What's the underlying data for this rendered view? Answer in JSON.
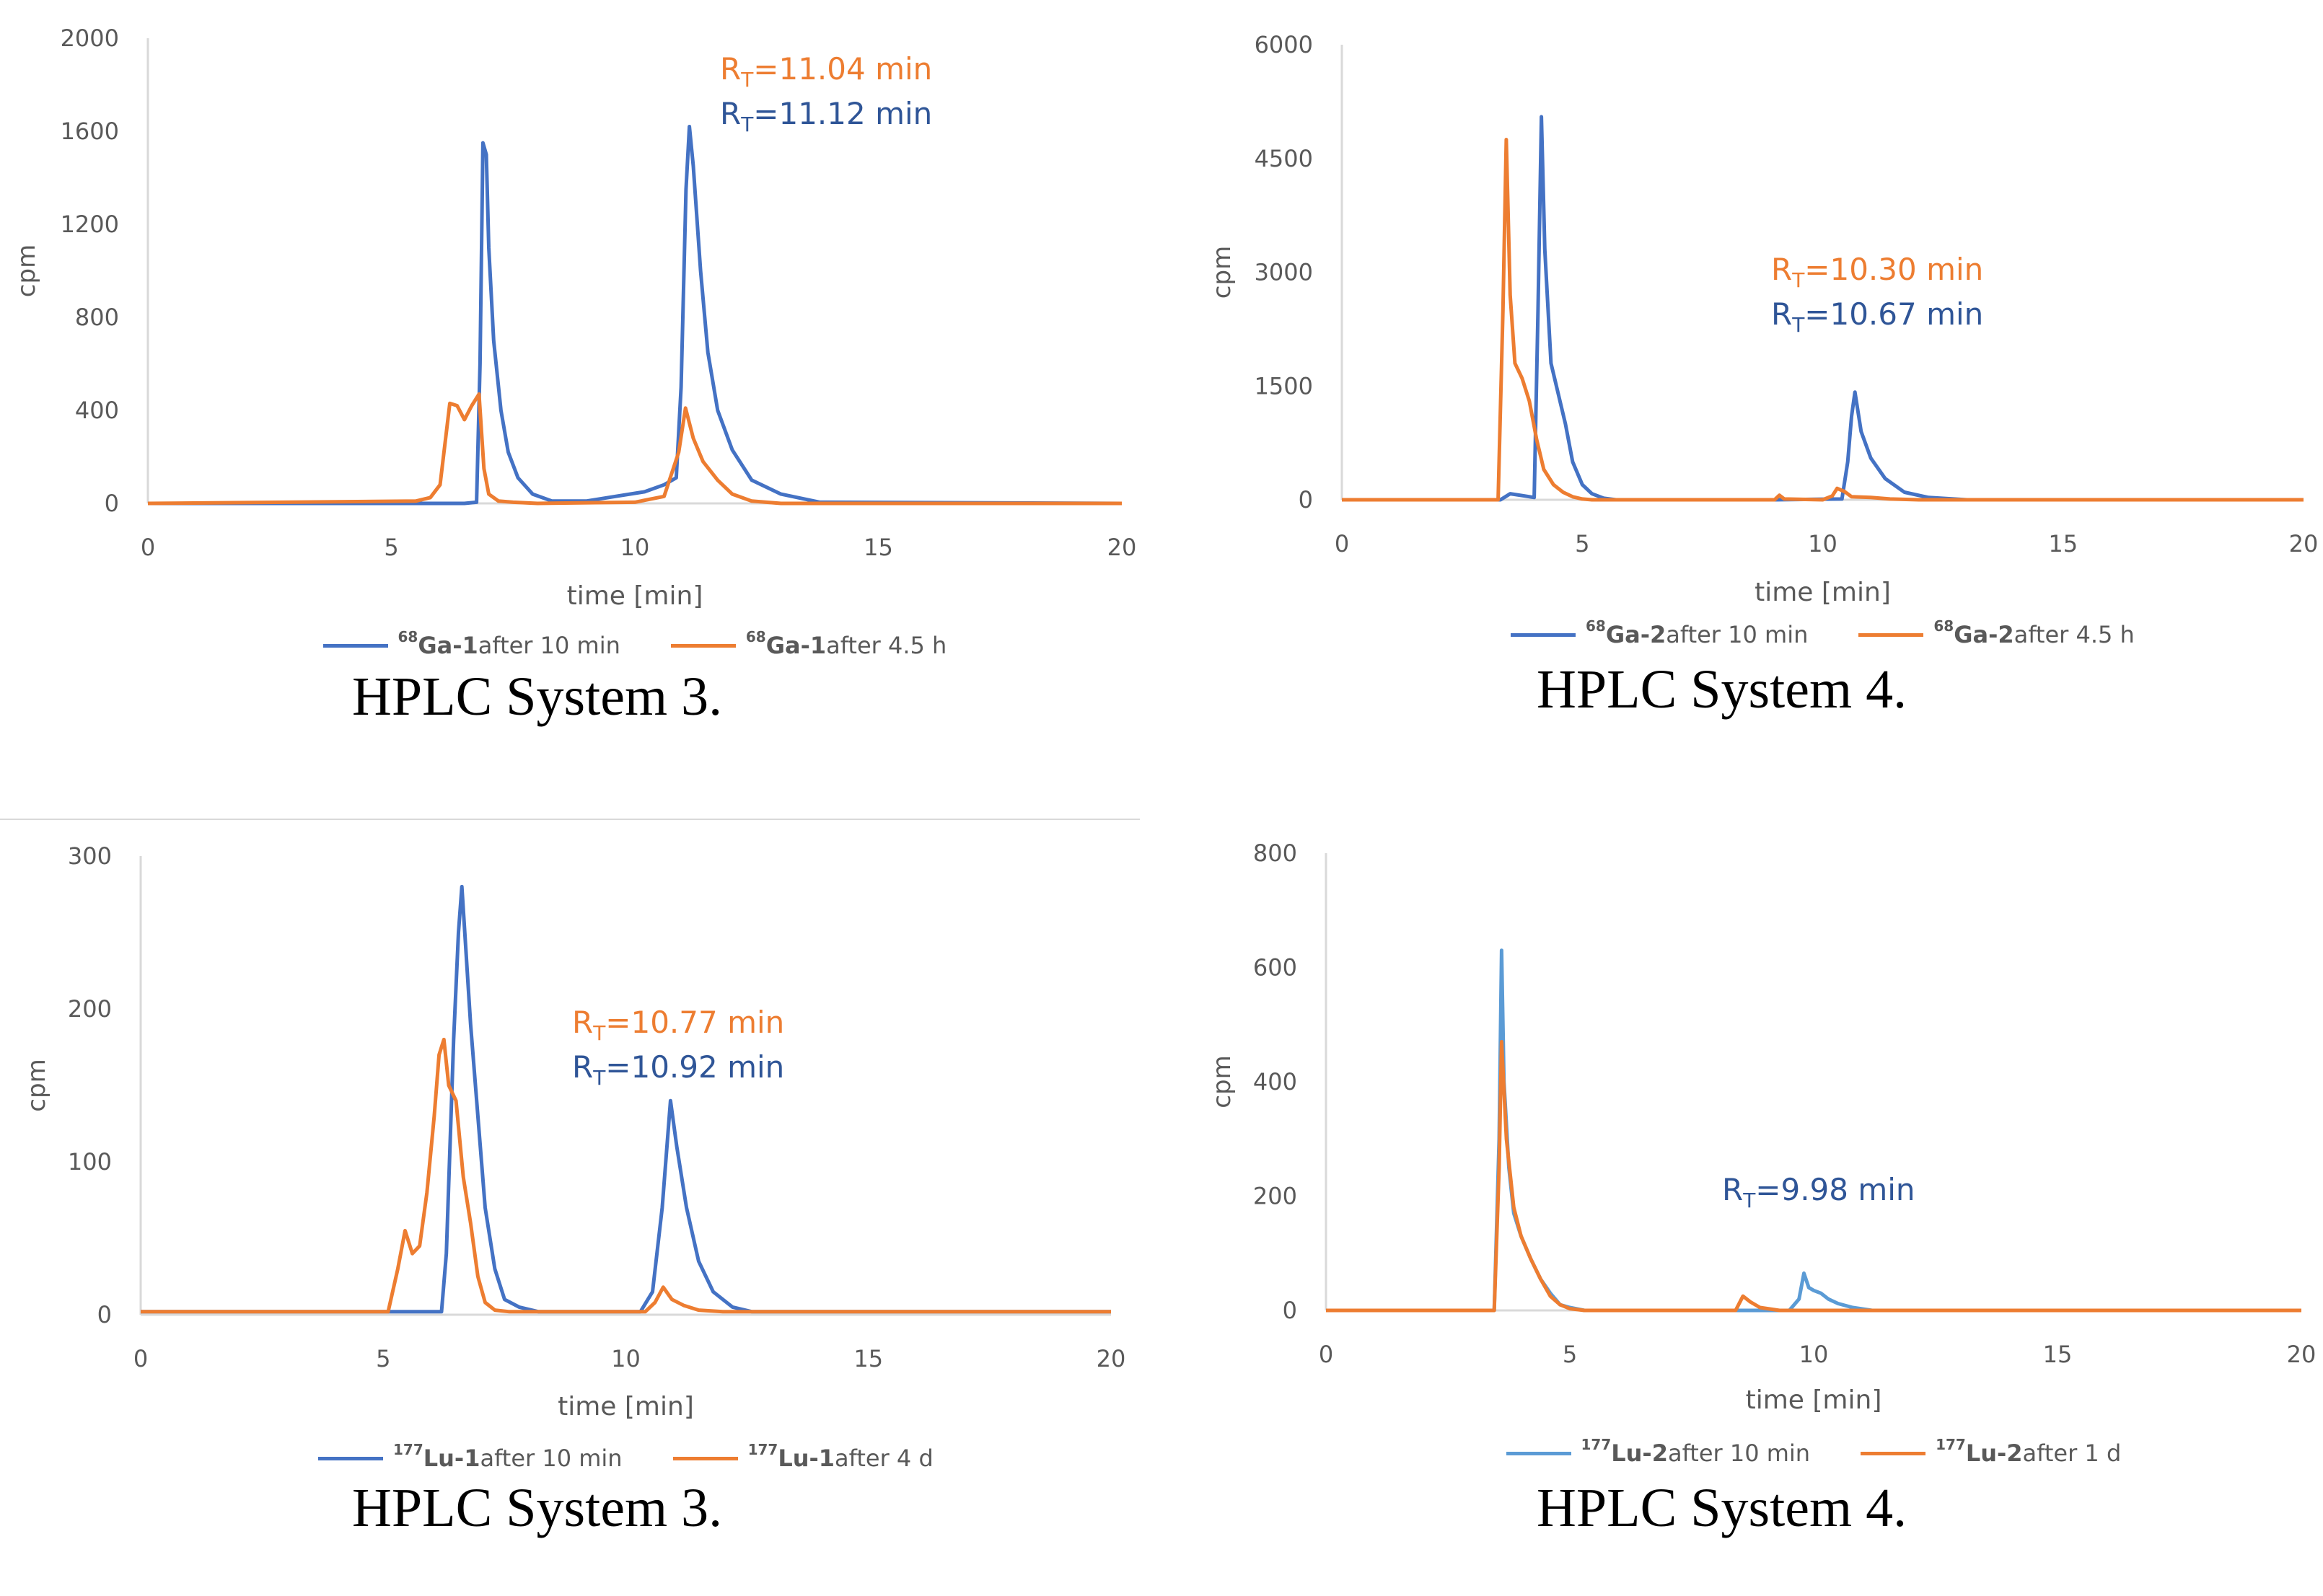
{
  "colors": {
    "blue": "#4472c4",
    "orange": "#ed7d31",
    "light_blue": "#5b9bd5",
    "axis": "#d9d9d9",
    "tick_text": "#595959"
  },
  "chart_data": [
    {
      "type": "line",
      "caption": "HPLC System 3.",
      "xlabel": "time [min]",
      "ylabel": "cpm",
      "xlim": [
        0,
        20
      ],
      "ylim": [
        0,
        2000
      ],
      "xticks": [
        0,
        5,
        10,
        15,
        20
      ],
      "yticks": [
        0,
        400,
        800,
        1200,
        1600,
        2000
      ],
      "legend_position": "bottom",
      "annotations": [
        {
          "base": "R",
          "sub": "T",
          "value": "=11.04 min",
          "series": 1
        },
        {
          "base": "R",
          "sub": "T",
          "value": "=11.12 min",
          "series": 0
        }
      ],
      "series": [
        {
          "sup": "68",
          "name": "Ga-1",
          "suffix": " after 10 min",
          "color": "#4472c4",
          "x": [
            0,
            6.5,
            6.75,
            6.82,
            6.88,
            6.95,
            7.0,
            7.1,
            7.25,
            7.4,
            7.6,
            7.9,
            8.3,
            9.0,
            9.6,
            10.2,
            10.6,
            10.85,
            10.95,
            11.05,
            11.12,
            11.2,
            11.35,
            11.5,
            11.7,
            12.0,
            12.4,
            13.0,
            13.8,
            20
          ],
          "y": [
            0,
            0,
            5,
            600,
            1550,
            1500,
            1100,
            700,
            400,
            220,
            110,
            40,
            10,
            10,
            30,
            50,
            80,
            110,
            500,
            1350,
            1620,
            1450,
            1000,
            650,
            400,
            230,
            100,
            40,
            5,
            0
          ]
        },
        {
          "sup": "68",
          "name": "Ga-1",
          "suffix": " after 4.5 h",
          "color": "#ed7d31",
          "x": [
            0,
            5.5,
            5.8,
            6.0,
            6.2,
            6.35,
            6.5,
            6.65,
            6.8,
            6.9,
            7.0,
            7.2,
            7.5,
            8.0,
            10.0,
            10.6,
            10.9,
            11.04,
            11.2,
            11.4,
            11.7,
            12.0,
            12.4,
            13.0,
            20
          ],
          "y": [
            0,
            10,
            25,
            80,
            430,
            420,
            360,
            420,
            470,
            150,
            40,
            10,
            5,
            0,
            5,
            30,
            220,
            410,
            280,
            180,
            100,
            40,
            10,
            0,
            0
          ]
        }
      ]
    },
    {
      "type": "line",
      "caption": "HPLC System 4.",
      "xlabel": "time [min]",
      "ylabel": "cpm",
      "xlim": [
        0,
        20
      ],
      "ylim": [
        0,
        6000
      ],
      "xticks": [
        0,
        5,
        10,
        15,
        20
      ],
      "yticks": [
        0,
        1500,
        3000,
        4500,
        6000
      ],
      "legend_position": "bottom",
      "annotations": [
        {
          "base": "R",
          "sub": "T",
          "value": "=10.30 min",
          "series": 1
        },
        {
          "base": "R",
          "sub": "T",
          "value": "=10.67 min",
          "series": 0
        }
      ],
      "series": [
        {
          "sup": "68",
          "name": "Ga-2",
          "suffix": " after 10 min",
          "color": "#4472c4",
          "x": [
            0,
            3.3,
            3.5,
            3.8,
            4.0,
            4.08,
            4.15,
            4.22,
            4.35,
            4.5,
            4.65,
            4.8,
            5.0,
            5.2,
            5.45,
            5.7,
            9.0,
            10.4,
            10.52,
            10.6,
            10.67,
            10.8,
            11.0,
            11.3,
            11.7,
            12.2,
            13.0,
            20
          ],
          "y": [
            0,
            0,
            80,
            50,
            30,
            2500,
            5050,
            3300,
            1800,
            1400,
            1000,
            500,
            200,
            80,
            20,
            0,
            0,
            10,
            500,
            1100,
            1420,
            900,
            550,
            280,
            100,
            30,
            0,
            0
          ]
        },
        {
          "sup": "68",
          "name": "Ga-2",
          "suffix": " after 4.5 h",
          "color": "#ed7d31",
          "x": [
            0,
            3.25,
            3.35,
            3.42,
            3.5,
            3.6,
            3.75,
            3.9,
            4.05,
            4.2,
            4.4,
            4.6,
            4.8,
            5.0,
            5.2,
            9.0,
            9.1,
            9.2,
            10.0,
            10.2,
            10.3,
            10.45,
            10.6,
            11.0,
            11.4,
            12.0,
            20
          ],
          "y": [
            0,
            0,
            2500,
            4750,
            2700,
            1800,
            1600,
            1300,
            800,
            400,
            200,
            100,
            40,
            10,
            0,
            0,
            60,
            10,
            0,
            50,
            150,
            110,
            40,
            30,
            10,
            0,
            0
          ]
        }
      ]
    },
    {
      "type": "line",
      "caption": "HPLC System 3.",
      "xlabel": "time [min]",
      "ylabel": "cpm",
      "xlim": [
        0,
        20
      ],
      "ylim": [
        0,
        300
      ],
      "xticks": [
        0,
        5,
        10,
        15,
        20
      ],
      "yticks": [
        0,
        100,
        200,
        300
      ],
      "legend_position": "bottom",
      "annotations": [
        {
          "base": "R",
          "sub": "T",
          "value": "=10.77 min",
          "series": 1
        },
        {
          "base": "R",
          "sub": "T",
          "value": "=10.92 min",
          "series": 0
        }
      ],
      "series": [
        {
          "sup": "177",
          "name": "Lu-1",
          "suffix": " after 10 min",
          "color": "#4472c4",
          "x": [
            0,
            6.2,
            6.3,
            6.45,
            6.55,
            6.62,
            6.7,
            6.8,
            6.95,
            7.1,
            7.3,
            7.5,
            7.8,
            8.2,
            10.3,
            10.55,
            10.75,
            10.92,
            11.05,
            11.25,
            11.5,
            11.8,
            12.2,
            12.6,
            20
          ],
          "y": [
            2,
            2,
            40,
            180,
            250,
            280,
            240,
            190,
            130,
            70,
            30,
            10,
            5,
            2,
            2,
            15,
            70,
            140,
            110,
            70,
            35,
            15,
            5,
            2,
            2
          ]
        },
        {
          "sup": "177",
          "name": "Lu-1",
          "suffix": " after 4 d",
          "color": "#ed7d31",
          "x": [
            0,
            5.1,
            5.3,
            5.45,
            5.6,
            5.75,
            5.9,
            6.05,
            6.15,
            6.25,
            6.35,
            6.5,
            6.65,
            6.8,
            6.95,
            7.1,
            7.3,
            7.6,
            10.4,
            10.6,
            10.77,
            10.95,
            11.2,
            11.5,
            12.0,
            20
          ],
          "y": [
            2,
            2,
            30,
            55,
            40,
            45,
            80,
            130,
            170,
            180,
            150,
            140,
            90,
            60,
            25,
            8,
            3,
            2,
            2,
            8,
            18,
            10,
            6,
            3,
            2,
            2
          ]
        }
      ]
    },
    {
      "type": "line",
      "caption": "HPLC System 4.",
      "xlabel": "time [min]",
      "ylabel": "cpm",
      "xlim": [
        0,
        20
      ],
      "ylim": [
        0,
        800
      ],
      "xticks": [
        0,
        5,
        10,
        15,
        20
      ],
      "yticks": [
        0,
        200,
        400,
        600,
        800
      ],
      "legend_position": "bottom",
      "annotations": [
        {
          "base": "R",
          "sub": "T",
          "value": "=9.98 min",
          "series": 0
        }
      ],
      "series": [
        {
          "sup": "177",
          "name": "Lu-2",
          "suffix": " after 10 min",
          "color": "#5b9bd5",
          "x": [
            0,
            3.45,
            3.55,
            3.6,
            3.65,
            3.75,
            3.85,
            4.0,
            4.2,
            4.4,
            4.6,
            4.8,
            5.0,
            5.3,
            9.5,
            9.7,
            9.8,
            9.9,
            10.0,
            10.15,
            10.3,
            10.5,
            10.8,
            11.2,
            20
          ],
          "y": [
            0,
            0,
            300,
            630,
            400,
            250,
            170,
            130,
            90,
            55,
            30,
            10,
            5,
            0,
            0,
            20,
            65,
            40,
            35,
            30,
            20,
            12,
            5,
            0,
            0
          ]
        },
        {
          "sup": "177",
          "name": "Lu-2",
          "suffix": " after 1 d",
          "color": "#ed7d31",
          "x": [
            0,
            3.45,
            3.55,
            3.6,
            3.7,
            3.85,
            4.0,
            4.2,
            4.4,
            4.6,
            4.8,
            5.0,
            5.3,
            8.4,
            8.55,
            8.7,
            8.9,
            9.3,
            20
          ],
          "y": [
            0,
            0,
            250,
            470,
            300,
            180,
            130,
            90,
            55,
            25,
            10,
            3,
            0,
            0,
            25,
            15,
            5,
            0,
            0
          ]
        }
      ]
    }
  ]
}
